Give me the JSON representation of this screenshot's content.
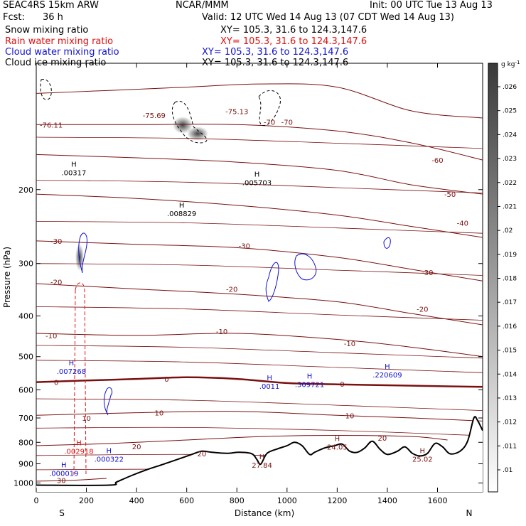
{
  "header": {
    "model": "SEAC4RS 15km ARW",
    "org": "NCAR/MMM",
    "init": "Init: 00 UTC Tue 13 Aug 13",
    "fcst_label": "Fcst:",
    "fcst_value": "36 h",
    "valid": "Valid: 12 UTC Wed 14 Aug 13 (07 CDT Wed 14 Aug 13)",
    "fields": [
      {
        "name": "Snow mixing ratio",
        "xy": "XY= 105.3, 31.6 to 124.3,147.6",
        "color": "#000000"
      },
      {
        "name": "Rain water mixing ratio",
        "xy": "XY= 105.3, 31.6 to 124.3,147.6",
        "color": "#e01010"
      },
      {
        "name": "Cloud water mixing ratio",
        "xy": "XY= 105.3, 31.6 to 124.3,147.6",
        "color": "#1010d0"
      },
      {
        "name": "Cloud ice mixing ratio",
        "xy": "XY= 105.3, 31.6 to 124.3,147.6",
        "color": "#000000"
      }
    ]
  },
  "colors": {
    "temperature": "#7a1010",
    "freezing": "#7a1010",
    "rain": "#e01010",
    "cloud": "#1010d0",
    "terrain": "#000000"
  },
  "chart_data": {
    "type": "contour",
    "xlabel": "Distance (km)",
    "ylabel": "Pressure (hPa)",
    "xlim": [
      0,
      1780
    ],
    "ylim": [
      1050,
      100
    ],
    "y_scale": "log",
    "x_ticks": [
      "0",
      "200",
      "400",
      "600",
      "800",
      "1000",
      "1200",
      "1400",
      "1600"
    ],
    "y_ticks": [
      "200",
      "300",
      "400",
      "500",
      "600",
      "700",
      "800",
      "900",
      "1000"
    ],
    "x_end_labels": {
      "left": "S",
      "right": "N"
    },
    "colorbar": {
      "unit": "g kg",
      "unit_exp": "-1",
      "ticks": [
        ".01",
        ".011",
        ".012",
        ".013",
        ".014",
        ".015",
        ".016",
        ".017",
        ".018",
        ".019",
        ".02",
        ".021",
        ".022",
        ".023",
        ".024",
        ".025",
        ".026"
      ]
    },
    "terrain": [
      [
        0,
        1012
      ],
      [
        290,
        1012
      ],
      [
        320,
        995
      ],
      [
        380,
        960
      ],
      [
        440,
        930
      ],
      [
        500,
        905
      ],
      [
        560,
        880
      ],
      [
        620,
        855
      ],
      [
        660,
        840
      ],
      [
        700,
        845
      ],
      [
        760,
        850
      ],
      [
        810,
        845
      ],
      [
        860,
        852
      ],
      [
        880,
        880
      ],
      [
        895,
        902
      ],
      [
        920,
        850
      ],
      [
        960,
        830
      ],
      [
        1000,
        815
      ],
      [
        1030,
        800
      ],
      [
        1060,
        815
      ],
      [
        1090,
        855
      ],
      [
        1110,
        845
      ],
      [
        1150,
        825
      ],
      [
        1190,
        815
      ],
      [
        1220,
        808
      ],
      [
        1250,
        840
      ],
      [
        1280,
        845
      ],
      [
        1310,
        825
      ],
      [
        1340,
        795
      ],
      [
        1370,
        830
      ],
      [
        1400,
        855
      ],
      [
        1440,
        840
      ],
      [
        1470,
        820
      ],
      [
        1500,
        850
      ],
      [
        1530,
        862
      ],
      [
        1560,
        850
      ],
      [
        1590,
        805
      ],
      [
        1620,
        820
      ],
      [
        1650,
        852
      ],
      [
        1690,
        840
      ],
      [
        1720,
        795
      ],
      [
        1745,
        700
      ],
      [
        1760,
        710
      ],
      [
        1780,
        750
      ]
    ],
    "freezing_level": [
      [
        0,
        575
      ],
      [
        200,
        570
      ],
      [
        400,
        565
      ],
      [
        600,
        560
      ],
      [
        800,
        565
      ],
      [
        1000,
        578
      ],
      [
        1200,
        582
      ],
      [
        1400,
        585
      ],
      [
        1600,
        588
      ],
      [
        1780,
        590
      ]
    ],
    "isotherms": [
      {
        "label": "-70",
        "pts": [
          [
            0,
            118
          ],
          [
            300,
            116
          ],
          [
            600,
            114
          ],
          [
            900,
            112
          ],
          [
            1200,
            114
          ],
          [
            1500,
            130
          ],
          [
            1780,
            135
          ]
        ]
      },
      {
        "label": "-60",
        "pts": [
          [
            0,
            140
          ],
          [
            400,
            140
          ],
          [
            800,
            140
          ],
          [
            1200,
            145
          ],
          [
            1500,
            155
          ],
          [
            1780,
            170
          ]
        ]
      },
      {
        "label": "-50",
        "pts": [
          [
            0,
            165
          ],
          [
            400,
            168
          ],
          [
            800,
            172
          ],
          [
            1200,
            180
          ],
          [
            1500,
            195
          ],
          [
            1780,
            205
          ]
        ]
      },
      {
        "label": "-40",
        "pts": [
          [
            0,
            205
          ],
          [
            400,
            210
          ],
          [
            800,
            218
          ],
          [
            1200,
            230
          ],
          [
            1500,
            245
          ],
          [
            1780,
            260
          ]
        ]
      },
      {
        "label": "-30",
        "pts": [
          [
            0,
            265
          ],
          [
            400,
            270
          ],
          [
            800,
            275
          ],
          [
            1200,
            290
          ],
          [
            1500,
            310
          ],
          [
            1780,
            330
          ]
        ]
      },
      {
        "label": "-20",
        "pts": [
          [
            0,
            335
          ],
          [
            400,
            345
          ],
          [
            800,
            355
          ],
          [
            1200,
            370
          ],
          [
            1500,
            395
          ],
          [
            1780,
            420
          ]
        ]
      },
      {
        "label": "-10",
        "pts": [
          [
            0,
            440
          ],
          [
            400,
            445
          ],
          [
            800,
            440
          ],
          [
            1200,
            455
          ],
          [
            1500,
            475
          ],
          [
            1780,
            500
          ]
        ]
      },
      {
        "label": "10",
        "pts": [
          [
            0,
            690
          ],
          [
            400,
            680
          ],
          [
            800,
            675
          ],
          [
            1200,
            690
          ],
          [
            1500,
            700
          ],
          [
            1780,
            712
          ]
        ]
      },
      {
        "label": "20",
        "pts": [
          [
            0,
            815
          ],
          [
            300,
            805
          ],
          [
            600,
            790
          ],
          [
            900,
            775
          ],
          [
            1200,
            770
          ],
          [
            1500,
            775
          ],
          [
            1640,
            790
          ]
        ]
      },
      {
        "label": "30",
        "pts": [
          [
            0,
            990
          ],
          [
            150,
            985
          ],
          [
            280,
            975
          ]
        ]
      }
    ],
    "temp_labels": [
      {
        "text": "-76.11",
        "x": 60,
        "p": 140
      },
      {
        "text": "-75.69",
        "x": 470,
        "p": 133
      },
      {
        "text": "-75.13",
        "x": 800,
        "p": 130
      },
      {
        "text": "-70",
        "x": 930,
        "p": 138
      },
      {
        "text": "-70",
        "x": 1000,
        "p": 138
      },
      {
        "text": "-60",
        "x": 1600,
        "p": 170
      },
      {
        "text": "-50",
        "x": 1650,
        "p": 205
      },
      {
        "text": "-40",
        "x": 1700,
        "p": 240
      },
      {
        "text": "-30",
        "x": 80,
        "p": 265
      },
      {
        "text": "-30",
        "x": 830,
        "p": 272
      },
      {
        "text": "-30",
        "x": 1560,
        "p": 315
      },
      {
        "text": "-20",
        "x": 80,
        "p": 332
      },
      {
        "text": "-20",
        "x": 780,
        "p": 345
      },
      {
        "text": "-20",
        "x": 1540,
        "p": 385
      },
      {
        "text": "-10",
        "x": 60,
        "p": 445
      },
      {
        "text": "-10",
        "x": 740,
        "p": 435
      },
      {
        "text": "-10",
        "x": 1250,
        "p": 465
      },
      {
        "text": "0",
        "x": 80,
        "p": 575
      },
      {
        "text": "0",
        "x": 520,
        "p": 565
      },
      {
        "text": "0",
        "x": 1220,
        "p": 580
      },
      {
        "text": "10",
        "x": 200,
        "p": 700
      },
      {
        "text": "10",
        "x": 490,
        "p": 680
      },
      {
        "text": "10",
        "x": 1250,
        "p": 690
      },
      {
        "text": "20",
        "x": 400,
        "p": 818
      },
      {
        "text": "20",
        "x": 1380,
        "p": 780
      },
      {
        "text": "20",
        "x": 660,
        "p": 850
      },
      {
        "text": "30",
        "x": 100,
        "p": 985
      }
    ],
    "max_labels": [
      {
        "h": "H",
        "v": ".00317",
        "x": 150,
        "p": 180,
        "color": "#000000"
      },
      {
        "h": "H",
        "v": ".008829",
        "x": 580,
        "p": 225,
        "color": "#000000"
      },
      {
        "h": "H",
        "v": ".005703",
        "x": 880,
        "p": 190,
        "color": "#000000"
      },
      {
        "h": "H",
        "v": ".007268",
        "x": 140,
        "p": 535,
        "color": "#1010d0"
      },
      {
        "h": "H",
        "v": ".0011",
        "x": 930,
        "p": 580,
        "color": "#1010d0"
      },
      {
        "h": "H",
        "v": ".309721",
        "x": 1090,
        "p": 575,
        "color": "#1010d0"
      },
      {
        "h": "H",
        "v": ".220609",
        "x": 1400,
        "p": 545,
        "color": "#1010d0"
      },
      {
        "h": "H",
        "v": ".002918",
        "x": 170,
        "p": 830,
        "color": "#e01010"
      },
      {
        "h": "H",
        "v": ".000322",
        "x": 290,
        "p": 865,
        "color": "#1010d0"
      },
      {
        "h": "H",
        "v": ".000019",
        "x": 110,
        "p": 935,
        "color": "#1010d0"
      },
      {
        "h": "H",
        "v": "27.84",
        "x": 900,
        "p": 895,
        "color": "#7a1010"
      },
      {
        "h": "H",
        "v": "24.05",
        "x": 1200,
        "p": 810,
        "color": "#7a1010"
      },
      {
        "h": "H",
        "v": "25.02",
        "x": 1540,
        "p": 865,
        "color": "#7a1010"
      }
    ]
  }
}
